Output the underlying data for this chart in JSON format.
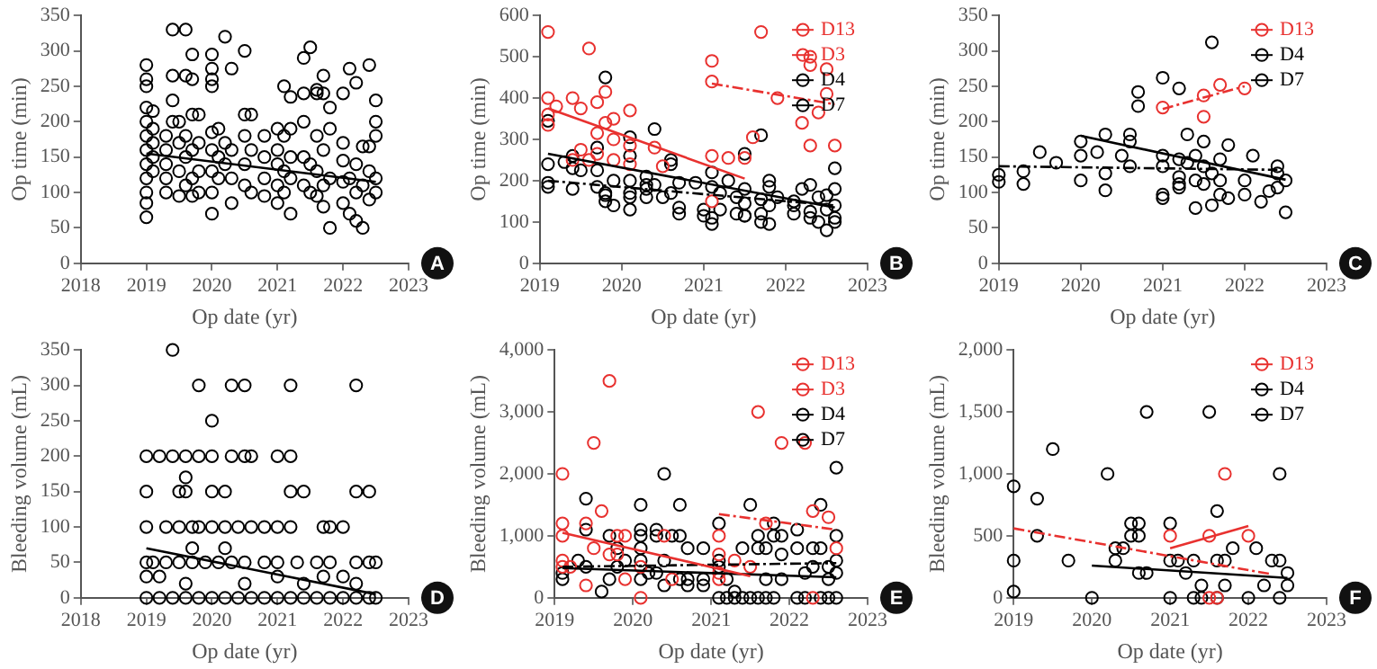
{
  "chart_data": [
    {
      "type": "scatter",
      "xlabel": "Op date (yr)",
      "ylabel": "Op time (min)",
      "xlim": [
        2018,
        2023
      ],
      "xticks": [
        2018,
        2019,
        2020,
        2021,
        2022,
        2023
      ],
      "ylim": [
        0,
        350
      ],
      "yticks": [
        0,
        50,
        100,
        150,
        200,
        250,
        300,
        350
      ],
      "marker": "circle",
      "annotations": [
        "A"
      ],
      "series": [
        {
          "color": "#000000",
          "x": [
            2019,
            2019,
            2019,
            2019,
            2019,
            2019,
            2019,
            2019,
            2019,
            2019,
            2019,
            2019,
            2019.1,
            2019.1,
            2019.1,
            2019.1,
            2019.1,
            2019.3,
            2019.3,
            2019.3,
            2019.3,
            2019.3,
            2019.4,
            2019.4,
            2019.4,
            2019.4,
            2019.5,
            2019.5,
            2019.5,
            2019.5,
            2019.6,
            2019.6,
            2019.6,
            2019.6,
            2019.6,
            2019.7,
            2019.7,
            2019.7,
            2019.7,
            2019.7,
            2019.7,
            2019.8,
            2019.8,
            2019.8,
            2019.8,
            2020,
            2020,
            2020,
            2020,
            2020,
            2020,
            2020,
            2020,
            2020,
            2020.1,
            2020.1,
            2020.1,
            2020.2,
            2020.2,
            2020.2,
            2020.3,
            2020.3,
            2020.3,
            2020.3,
            2020.5,
            2020.5,
            2020.5,
            2020.5,
            2020.5,
            2020.6,
            2020.6,
            2020.6,
            2020.8,
            2020.8,
            2020.8,
            2020.8,
            2021,
            2021,
            2021,
            2021,
            2021,
            2021.1,
            2021.1,
            2021.1,
            2021.1,
            2021.2,
            2021.2,
            2021.2,
            2021.2,
            2021.2,
            2021.4,
            2021.4,
            2021.4,
            2021.4,
            2021.4,
            2021.5,
            2021.5,
            2021.5,
            2021.6,
            2021.6,
            2021.6,
            2021.6,
            2021.6,
            2021.7,
            2021.7,
            2021.7,
            2021.7,
            2021.7,
            2021.8,
            2021.8,
            2021.8,
            2021.8,
            2022,
            2022,
            2022,
            2022,
            2022,
            2022.1,
            2022.1,
            2022.1,
            2022.2,
            2022.2,
            2022.2,
            2022.2,
            2022.3,
            2022.3,
            2022.3,
            2022.4,
            2022.4,
            2022.4,
            2022.4,
            2022.5,
            2022.5,
            2022.5,
            2022.5,
            2022.5
          ],
          "values": [
            280,
            260,
            250,
            220,
            200,
            180,
            160,
            140,
            120,
            100,
            85,
            65,
            215,
            190,
            170,
            150,
            130,
            180,
            160,
            140,
            120,
            100,
            330,
            265,
            230,
            200,
            200,
            170,
            130,
            95,
            330,
            265,
            180,
            150,
            110,
            295,
            260,
            210,
            160,
            120,
            95,
            210,
            170,
            130,
            100,
            295,
            275,
            260,
            250,
            185,
            160,
            130,
            100,
            70,
            190,
            150,
            120,
            320,
            170,
            140,
            275,
            160,
            120,
            85,
            300,
            210,
            180,
            140,
            110,
            210,
            160,
            100,
            180,
            150,
            120,
            95,
            190,
            160,
            140,
            110,
            85,
            250,
            180,
            130,
            100,
            235,
            190,
            150,
            120,
            70,
            290,
            240,
            200,
            150,
            110,
            305,
            140,
            100,
            245,
            240,
            180,
            130,
            95,
            265,
            240,
            160,
            110,
            80,
            220,
            190,
            120,
            50,
            240,
            170,
            145,
            115,
            85,
            275,
            120,
            70,
            255,
            140,
            100,
            60,
            165,
            110,
            50,
            280,
            165,
            130,
            90,
            230,
            200,
            180,
            120,
            100
          ]
        },
        {
          "type": "line",
          "color": "#000000",
          "line_style": "solid",
          "x": [
            2019,
            2022.5
          ],
          "values": [
            155,
            115
          ],
          "marker": "none"
        }
      ]
    },
    {
      "type": "scatter",
      "xlabel": "Op date (yr)",
      "ylabel": "Op time (min)",
      "xlim": [
        2019,
        2023
      ],
      "xticks": [
        2019,
        2020,
        2021,
        2022,
        2023
      ],
      "ylim": [
        0,
        600
      ],
      "yticks": [
        0,
        100,
        200,
        300,
        400,
        500,
        600
      ],
      "marker": "circle",
      "legend": "top right",
      "annotations": [
        "B"
      ],
      "series": [
        {
          "name": "D13",
          "color": "#e8312f",
          "x": [
            2021.1,
            2021.1,
            2021.7,
            2021.6,
            2021.9,
            2022.2,
            2022.3,
            2022.3,
            2022.3,
            2022.4,
            2022.5,
            2022.5,
            2022.6
          ],
          "values": [
            490,
            440,
            560,
            305,
            400,
            340,
            500,
            480,
            285,
            365,
            470,
            410,
            285
          ]
        },
        {
          "name": "D3",
          "color": "#e8312f",
          "x": [
            2019.1,
            2019.1,
            2019.1,
            2019.1,
            2019.2,
            2019.4,
            2019.4,
            2019.5,
            2019.5,
            2019.6,
            2019.6,
            2019.7,
            2019.7,
            2019.7,
            2019.8,
            2019.8,
            2019.9,
            2019.9,
            2019.9,
            2020.1,
            2020.1,
            2020.1,
            2020.4,
            2020.5,
            2021.1,
            2021.1,
            2021.3,
            2021.5
          ],
          "values": [
            560,
            400,
            360,
            335,
            380,
            400,
            250,
            375,
            275,
            520,
            250,
            390,
            315,
            265,
            415,
            340,
            350,
            300,
            250,
            370,
            285,
            240,
            280,
            235,
            260,
            150,
            255,
            255
          ]
        },
        {
          "name": "D4",
          "color": "#000000",
          "x": [
            2019.1,
            2019.1,
            2019.3,
            2019.4,
            2019.4,
            2019.4,
            2019.5,
            2019.7,
            2019.8,
            2019.8,
            2019.9,
            2019.9,
            2020.1,
            2020.1,
            2020.1,
            2020.3,
            2020.3,
            2020.5,
            2020.6,
            2020.6,
            2020.7,
            2020.7,
            2021,
            2021,
            2021.1,
            2021.1,
            2021.3,
            2021.5,
            2021.5,
            2021.7,
            2021.7,
            2021.8,
            2021.8,
            2022.1,
            2022.2,
            2022.3,
            2022.6,
            2022.6
          ],
          "values": [
            195,
            185,
            245,
            260,
            230,
            180,
            225,
            225,
            165,
            150,
            200,
            140,
            260,
            170,
            130,
            190,
            160,
            160,
            240,
            170,
            135,
            120,
            130,
            115,
            220,
            110,
            200,
            180,
            115,
            310,
            100,
            200,
            95,
            150,
            180,
            110,
            180,
            110
          ]
        },
        {
          "name": "D7",
          "color": "#000000",
          "x": [
            2019.1,
            2019.1,
            2019.7,
            2019.7,
            2019.8,
            2019.8,
            2020.1,
            2020.1,
            2020.1,
            2020.3,
            2020.3,
            2020.4,
            2020.4,
            2020.6,
            2020.7,
            2020.9,
            2021.1,
            2021.1,
            2021.2,
            2021.2,
            2021.4,
            2021.4,
            2021.5,
            2021.5,
            2021.5,
            2021.7,
            2021.7,
            2021.8,
            2021.8,
            2021.9,
            2022.1,
            2022.1,
            2022.3,
            2022.3,
            2022.4,
            2022.4,
            2022.5,
            2022.5,
            2022.5,
            2022.6,
            2022.6,
            2022.6
          ],
          "values": [
            240,
            345,
            280,
            185,
            450,
            170,
            305,
            200,
            160,
            210,
            180,
            325,
            190,
            250,
            195,
            195,
            185,
            95,
            170,
            130,
            160,
            120,
            265,
            145,
            115,
            155,
            120,
            185,
            140,
            160,
            140,
            120,
            190,
            125,
            160,
            100,
            165,
            130,
            80,
            230,
            140,
            100
          ]
        },
        {
          "type": "line",
          "color": "#e8312f",
          "line_style": "dashed",
          "x": [
            2021.1,
            2022.6
          ],
          "values": [
            435,
            385
          ],
          "marker": "none"
        },
        {
          "type": "line",
          "color": "#e8312f",
          "line_style": "solid",
          "x": [
            2019.1,
            2021.5
          ],
          "values": [
            375,
            205
          ],
          "marker": "none"
        },
        {
          "type": "line",
          "color": "#000000",
          "line_style": "dashed",
          "x": [
            2019.1,
            2022.6
          ],
          "values": [
            200,
            140
          ],
          "marker": "none"
        },
        {
          "type": "line",
          "color": "#000000",
          "line_style": "solid",
          "x": [
            2019.1,
            2022.6
          ],
          "values": [
            265,
            135
          ],
          "marker": "none"
        }
      ]
    },
    {
      "type": "scatter",
      "xlabel": "Op date (yr)",
      "ylabel": "Op time (min)",
      "xlim": [
        2019,
        2023
      ],
      "xticks": [
        2019,
        2020,
        2021,
        2022,
        2023
      ],
      "ylim": [
        0,
        350
      ],
      "yticks": [
        0,
        50,
        100,
        150,
        200,
        250,
        300,
        350
      ],
      "marker": "circle",
      "legend": "top right",
      "annotations": [
        "C"
      ],
      "series": [
        {
          "name": "D13",
          "color": "#e8312f",
          "x": [
            2021,
            2021.5,
            2021.5,
            2021.7,
            2022
          ],
          "values": [
            220,
            237,
            207,
            252,
            247
          ]
        },
        {
          "name": "D4",
          "color": "#000000",
          "x": [
            2019,
            2019,
            2019.3,
            2019.3,
            2019.5,
            2019.7,
            2020,
            2020.3,
            2020.3,
            2020.5,
            2020.6,
            2020.7,
            2021,
            2021,
            2021.2,
            2021.3,
            2021.4,
            2021.5,
            2021.5,
            2021.5,
            2021.7,
            2021.7,
            2021.8,
            2021.8,
            2022,
            2022.1,
            2022.3
          ],
          "values": [
            125,
            115,
            130,
            112,
            157,
            142,
            152,
            127,
            103,
            152,
            137,
            242,
            152,
            137,
            122,
            182,
            78,
            172,
            137,
            112,
            147,
            117,
            167,
            92,
            117,
            152,
            102
          ]
        },
        {
          "name": "D7",
          "color": "#000000",
          "x": [
            2020,
            2020,
            2020.2,
            2020.3,
            2020.6,
            2020.6,
            2020.7,
            2021,
            2021,
            2021,
            2021.2,
            2021.2,
            2021.2,
            2021.2,
            2021.3,
            2021.4,
            2021.4,
            2021.6,
            2021.6,
            2021.6,
            2021.7,
            2022,
            2022.2,
            2022.4,
            2022.4,
            2022.4,
            2022.5,
            2022.5
          ],
          "values": [
            172,
            117,
            157,
            182,
            172,
            182,
            222,
            262,
            97,
            92,
            247,
            147,
            112,
            107,
            142,
            152,
            117,
            312,
            127,
            82,
            97,
            97,
            87,
            137,
            127,
            107,
            117,
            72
          ]
        },
        {
          "type": "line",
          "color": "#e8312f",
          "line_style": "dashed",
          "x": [
            2021,
            2022
          ],
          "values": [
            218,
            250
          ],
          "marker": "none"
        },
        {
          "type": "line",
          "color": "#000000",
          "line_style": "dashed",
          "x": [
            2019,
            2022.4
          ],
          "values": [
            137,
            132
          ],
          "marker": "none"
        },
        {
          "type": "line",
          "color": "#000000",
          "line_style": "solid",
          "x": [
            2020,
            2022.5
          ],
          "values": [
            180,
            118
          ],
          "marker": "none"
        }
      ]
    },
    {
      "type": "scatter",
      "xlabel": "Op date (yr)",
      "ylabel": "Bleeding volume (mL)",
      "xlim": [
        2018,
        2023
      ],
      "xticks": [
        2018,
        2019,
        2020,
        2021,
        2022,
        2023
      ],
      "ylim": [
        0,
        350
      ],
      "yticks": [
        0,
        50,
        100,
        150,
        200,
        250,
        300,
        350
      ],
      "marker": "circle",
      "annotations": [
        "D"
      ],
      "series": [
        {
          "color": "#000000",
          "x": [
            2019,
            2019.2,
            2019.4,
            2019.6,
            2019.8,
            2020,
            2020.2,
            2020.4,
            2020.6,
            2020.8,
            2021,
            2021.2,
            2021.4,
            2021.6,
            2021.8,
            2022,
            2022.2,
            2022.4,
            2022.5,
            2019,
            2019.1,
            2019.3,
            2019.5,
            2019.7,
            2019.9,
            2020.1,
            2020.3,
            2020.5,
            2020.8,
            2021,
            2021.3,
            2021.6,
            2021.8,
            2022.2,
            2022.4,
            2022.5,
            2019,
            2019.3,
            2019.5,
            2019.7,
            2019.8,
            2020,
            2020.2,
            2020.4,
            2020.6,
            2020.8,
            2021,
            2021.2,
            2021.7,
            2021.8,
            2022,
            2019,
            2019.5,
            2019.6,
            2020,
            2020.2,
            2021.2,
            2021.4,
            2022.2,
            2022.4,
            2019,
            2019.2,
            2019.4,
            2019.6,
            2019.8,
            2020,
            2020.3,
            2020.5,
            2020.6,
            2021,
            2021.2,
            2019.4,
            2019.8,
            2020.3,
            2020.5,
            2021.2,
            2022.2,
            2020,
            2019.6,
            2019.7,
            2020.2,
            2019,
            2019.2,
            2019.6,
            2020.5,
            2021,
            2021.4,
            2021.7,
            2022,
            2022.2
          ],
          "values": [
            0,
            0,
            0,
            0,
            0,
            0,
            0,
            0,
            0,
            0,
            0,
            0,
            0,
            0,
            0,
            0,
            0,
            0,
            0,
            50,
            50,
            50,
            50,
            50,
            50,
            50,
            50,
            50,
            50,
            50,
            50,
            50,
            50,
            50,
            50,
            50,
            100,
            100,
            100,
            100,
            100,
            100,
            100,
            100,
            100,
            100,
            100,
            100,
            100,
            100,
            100,
            150,
            150,
            150,
            150,
            150,
            150,
            150,
            150,
            150,
            200,
            200,
            200,
            200,
            200,
            200,
            200,
            200,
            200,
            200,
            200,
            350,
            300,
            300,
            300,
            300,
            300,
            250,
            170,
            70,
            70,
            30,
            30,
            20,
            20,
            30,
            20,
            30,
            30,
            20
          ]
        },
        {
          "type": "line",
          "color": "#000000",
          "line_style": "solid",
          "x": [
            2019,
            2022.5
          ],
          "values": [
            70,
            5
          ],
          "marker": "none"
        }
      ]
    },
    {
      "type": "scatter",
      "xlabel": "Op date (yr)",
      "ylabel": "Bleeding volume (mL)",
      "xlim": [
        2019,
        2023
      ],
      "xticks": [
        2019,
        2020,
        2021,
        2022,
        2023
      ],
      "ylim": [
        0,
        4000
      ],
      "yticks": [
        0,
        {
          "value": 1000,
          "label": "1,000"
        },
        {
          "value": 2000,
          "label": "2,000"
        },
        {
          "value": 3000,
          "label": "3,000"
        },
        {
          "value": 4000,
          "label": "4,000"
        }
      ],
      "marker": "circle",
      "legend": "top right",
      "annotations": [
        "E"
      ],
      "series": [
        {
          "name": "D13",
          "color": "#e8312f",
          "x": [
            2021.1,
            2021.1,
            2021.6,
            2021.7,
            2021.9,
            2022.2,
            2022.3,
            2022.3,
            2022.5,
            2022.6
          ],
          "values": [
            1000,
            700,
            3000,
            1200,
            2500,
            2500,
            1400,
            0,
            1300,
            800
          ]
        },
        {
          "name": "D3",
          "color": "#e8312f",
          "x": [
            2019.1,
            2019.1,
            2019.1,
            2019.1,
            2019.1,
            2019.2,
            2019.4,
            2019.4,
            2019.5,
            2019.5,
            2019.6,
            2019.7,
            2019.7,
            2019.8,
            2019.8,
            2019.9,
            2019.9,
            2020.1,
            2020.1,
            2020.4,
            2020.5,
            2021.1,
            2021.1,
            2021.3,
            2021.5
          ],
          "values": [
            2000,
            1200,
            1000,
            600,
            500,
            500,
            1200,
            200,
            2500,
            800,
            1400,
            3500,
            700,
            1000,
            700,
            1000,
            300,
            500,
            0,
            1000,
            300,
            400,
            300,
            600,
            500
          ]
        },
        {
          "name": "D4",
          "color": "#000000",
          "x": [
            2019.1,
            2019.3,
            2019.4,
            2019.4,
            2019.4,
            2019.6,
            2019.8,
            2020.1,
            2020.1,
            2020.1,
            2020.1,
            2020.3,
            2020.4,
            2020.4,
            2020.5,
            2020.6,
            2020.6,
            2020.7,
            2020.7,
            2020.9,
            2021.1,
            2021.1,
            2021.6,
            2021.7,
            2021.8,
            2021.8,
            2021.9,
            2022.3,
            2022.3,
            2022.5,
            2022.6,
            2022.6
          ],
          "values": [
            300,
            600,
            1600,
            1100,
            500,
            100,
            500,
            1500,
            1100,
            1000,
            800,
            1100,
            2000,
            600,
            1000,
            1500,
            1000,
            800,
            300,
            200,
            1200,
            500,
            1000,
            800,
            1200,
            0,
            700,
            800,
            500,
            300,
            2100,
            1000
          ]
        },
        {
          "name": "D7",
          "color": "#000000",
          "x": [
            2019.1,
            2019.7,
            2019.7,
            2019.8,
            2019.9,
            2020.1,
            2020.1,
            2020.2,
            2020.3,
            2020.3,
            2020.4,
            2020.6,
            2020.7,
            2020.9,
            2020.9,
            2021.1,
            2021.1,
            2021.2,
            2021.2,
            2021.3,
            2021.3,
            2021.4,
            2021.4,
            2021.5,
            2021.5,
            2021.6,
            2021.6,
            2021.7,
            2021.7,
            2021.8,
            2021.9,
            2021.9,
            2022.1,
            2022.1,
            2022.1,
            2022.2,
            2022.2,
            2022.4,
            2022.4,
            2022.4,
            2022.5,
            2022.5,
            2022.6,
            2022.6,
            2022.6
          ],
          "values": [
            400,
            1000,
            300,
            800,
            600,
            600,
            300,
            400,
            1000,
            400,
            200,
            300,
            200,
            800,
            300,
            600,
            0,
            300,
            0,
            100,
            0,
            800,
            0,
            1500,
            0,
            800,
            0,
            300,
            0,
            1000,
            1000,
            300,
            1100,
            800,
            0,
            400,
            0,
            1500,
            800,
            0,
            500,
            0,
            600,
            400,
            0
          ]
        },
        {
          "type": "line",
          "color": "#e8312f",
          "line_style": "dashed",
          "x": [
            2021.1,
            2022.6
          ],
          "values": [
            1350,
            1100
          ],
          "marker": "none"
        },
        {
          "type": "line",
          "color": "#e8312f",
          "line_style": "solid",
          "x": [
            2019.1,
            2021.5
          ],
          "values": [
            1050,
            350
          ],
          "marker": "none"
        },
        {
          "type": "line",
          "color": "#000000",
          "line_style": "dashed",
          "x": [
            2019.1,
            2022.6
          ],
          "values": [
            500,
            560
          ],
          "marker": "none"
        },
        {
          "type": "line",
          "color": "#000000",
          "line_style": "solid",
          "x": [
            2019.1,
            2022.6
          ],
          "values": [
            480,
            330
          ],
          "marker": "none"
        }
      ]
    },
    {
      "type": "scatter",
      "xlabel": "Op date (yr)",
      "ylabel": "Bleeding volume (mL)",
      "xlim": [
        2019,
        2023
      ],
      "xticks": [
        2019,
        2020,
        2021,
        2022,
        2023
      ],
      "ylim": [
        0,
        2000
      ],
      "yticks": [
        0,
        500,
        {
          "value": 1000,
          "label": "1,000"
        },
        {
          "value": 1500,
          "label": "1,500"
        },
        {
          "value": 2000,
          "label": "2,000"
        }
      ],
      "marker": "circle",
      "legend": "top right",
      "annotations": [
        "F"
      ],
      "series": [
        {
          "name": "D13",
          "color": "#e8312f",
          "x": [
            2021,
            2021.5,
            2021.5,
            2021.6,
            2021.7,
            2022
          ],
          "values": [
            500,
            500,
            0,
            0,
            1000,
            500
          ]
        },
        {
          "name": "D4",
          "color": "#000000",
          "x": [
            2019,
            2019,
            2019,
            2019.3,
            2019.3,
            2019.5,
            2019.7,
            2020,
            2020.3,
            2020.3,
            2020.4,
            2020.5,
            2020.6,
            2020.6,
            2020.7,
            2021,
            2021,
            2021,
            2021.1,
            2021.3,
            2021.3,
            2021.4,
            2021.4,
            2021.5,
            2021.6,
            2021.7,
            2021.8,
            2022,
            2022.1,
            2022.3
          ],
          "values": [
            900,
            300,
            50,
            800,
            500,
            1200,
            300,
            0,
            400,
            300,
            400,
            500,
            600,
            200,
            1500,
            600,
            300,
            0,
            300,
            300,
            0,
            100,
            0,
            1500,
            0,
            100,
            400,
            0,
            400,
            300
          ]
        },
        {
          "name": "D7",
          "color": "#000000",
          "x": [
            2020.2,
            2020.5,
            2020.6,
            2020.7,
            2021.2,
            2021.6,
            2021.6,
            2021.7,
            2022.2,
            2022.4,
            2022.4,
            2022.4,
            2022.5,
            2022.5
          ],
          "values": [
            1000,
            600,
            500,
            200,
            200,
            700,
            300,
            300,
            100,
            1000,
            300,
            0,
            200,
            100
          ]
        },
        {
          "type": "line",
          "color": "#e8312f",
          "line_style": "solid",
          "x": [
            2021,
            2022
          ],
          "values": [
            400,
            580
          ],
          "marker": "none"
        },
        {
          "type": "line",
          "color": "#e8312f",
          "line_style": "dashed",
          "x": [
            2019,
            2022.3
          ],
          "values": [
            560,
            190
          ],
          "marker": "none"
        },
        {
          "type": "line",
          "color": "#000000",
          "line_style": "solid",
          "x": [
            2020,
            2022.5
          ],
          "values": [
            260,
            160
          ],
          "marker": "none"
        }
      ]
    }
  ]
}
